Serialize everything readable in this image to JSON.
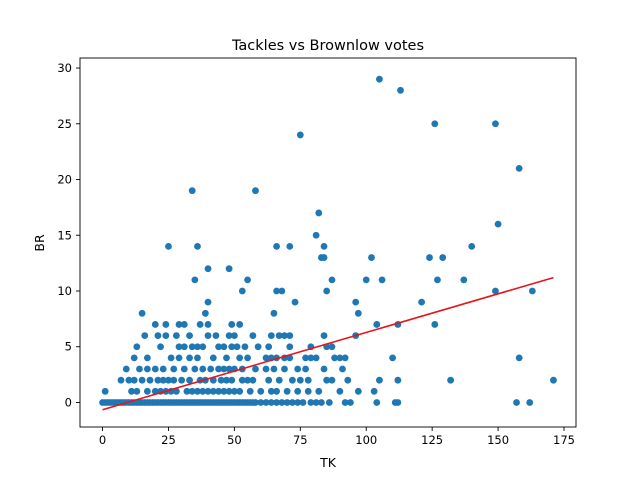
{
  "chart_data": {
    "type": "scatter",
    "title": "Tackles vs Brownlow votes",
    "xlabel": "TK",
    "ylabel": "BR",
    "xlim": [
      -8.55,
      179.55
    ],
    "ylim": [
      -2.2,
      30.9
    ],
    "xticks": [
      0,
      25,
      50,
      75,
      100,
      125,
      150,
      175
    ],
    "yticks": [
      0,
      5,
      10,
      15,
      20,
      25,
      30
    ],
    "grid": false,
    "point_color": "#1f77b4",
    "trend_color": "#e8141c",
    "trend_line": {
      "x": [
        0,
        171
      ],
      "y": [
        -0.65,
        11.2
      ]
    },
    "points": [
      [
        0,
        0
      ],
      [
        1,
        0
      ],
      [
        2,
        0
      ],
      [
        3,
        0
      ],
      [
        4,
        0
      ],
      [
        5,
        0
      ],
      [
        6,
        0
      ],
      [
        7,
        0
      ],
      [
        8,
        0
      ],
      [
        9,
        0
      ],
      [
        10,
        0
      ],
      [
        11,
        0
      ],
      [
        12,
        0
      ],
      [
        13,
        0
      ],
      [
        14,
        0
      ],
      [
        15,
        0
      ],
      [
        16,
        0
      ],
      [
        17,
        0
      ],
      [
        18,
        0
      ],
      [
        19,
        0
      ],
      [
        20,
        0
      ],
      [
        21,
        0
      ],
      [
        22,
        0
      ],
      [
        23,
        0
      ],
      [
        24,
        0
      ],
      [
        25,
        0
      ],
      [
        26,
        0
      ],
      [
        27,
        0
      ],
      [
        28,
        0
      ],
      [
        29,
        0
      ],
      [
        30,
        0
      ],
      [
        31,
        0
      ],
      [
        32,
        0
      ],
      [
        33,
        0
      ],
      [
        34,
        0
      ],
      [
        35,
        0
      ],
      [
        36,
        0
      ],
      [
        37,
        0
      ],
      [
        38,
        0
      ],
      [
        39,
        0
      ],
      [
        40,
        0
      ],
      [
        41,
        0
      ],
      [
        42,
        0
      ],
      [
        43,
        0
      ],
      [
        44,
        0
      ],
      [
        45,
        0
      ],
      [
        46,
        0
      ],
      [
        47,
        0
      ],
      [
        48,
        0
      ],
      [
        49,
        0
      ],
      [
        50,
        0
      ],
      [
        51,
        0
      ],
      [
        52,
        0
      ],
      [
        53,
        0
      ],
      [
        54,
        0
      ],
      [
        55,
        0
      ],
      [
        56,
        0
      ],
      [
        57,
        0
      ],
      [
        58,
        0
      ],
      [
        60,
        0
      ],
      [
        62,
        0
      ],
      [
        64,
        0
      ],
      [
        66,
        0
      ],
      [
        68,
        0
      ],
      [
        70,
        0
      ],
      [
        72,
        0
      ],
      [
        74,
        0
      ],
      [
        76,
        0
      ],
      [
        79,
        0
      ],
      [
        81,
        0
      ],
      [
        83,
        0
      ],
      [
        86,
        0
      ],
      [
        92,
        0
      ],
      [
        94,
        0
      ],
      [
        104,
        0
      ],
      [
        111,
        0
      ],
      [
        112,
        0
      ],
      [
        157,
        0
      ],
      [
        162,
        0
      ],
      [
        1,
        1
      ],
      [
        11,
        1
      ],
      [
        13,
        1
      ],
      [
        17,
        1
      ],
      [
        20,
        1
      ],
      [
        22,
        1
      ],
      [
        24,
        1
      ],
      [
        26,
        1
      ],
      [
        28,
        1
      ],
      [
        32,
        1
      ],
      [
        34,
        1
      ],
      [
        36,
        1
      ],
      [
        38,
        1
      ],
      [
        40,
        1
      ],
      [
        42,
        1
      ],
      [
        44,
        1
      ],
      [
        46,
        1
      ],
      [
        48,
        1
      ],
      [
        50,
        1
      ],
      [
        52,
        1
      ],
      [
        56,
        1
      ],
      [
        60,
        1
      ],
      [
        64,
        1
      ],
      [
        66,
        1
      ],
      [
        70,
        1
      ],
      [
        74,
        1
      ],
      [
        78,
        1
      ],
      [
        82,
        1
      ],
      [
        90,
        1
      ],
      [
        97,
        1
      ],
      [
        103,
        1
      ],
      [
        7,
        2
      ],
      [
        10,
        2
      ],
      [
        12,
        2
      ],
      [
        15,
        2
      ],
      [
        18,
        2
      ],
      [
        21,
        2
      ],
      [
        23,
        2
      ],
      [
        25,
        2
      ],
      [
        27,
        2
      ],
      [
        30,
        2
      ],
      [
        33,
        2
      ],
      [
        37,
        2
      ],
      [
        39,
        2
      ],
      [
        42,
        2
      ],
      [
        45,
        2
      ],
      [
        47,
        2
      ],
      [
        49,
        2
      ],
      [
        53,
        2
      ],
      [
        55,
        2
      ],
      [
        57,
        2
      ],
      [
        63,
        2
      ],
      [
        67,
        2
      ],
      [
        72,
        2
      ],
      [
        75,
        2
      ],
      [
        78,
        2
      ],
      [
        85,
        2
      ],
      [
        87,
        2
      ],
      [
        93,
        2
      ],
      [
        105,
        2
      ],
      [
        112,
        2
      ],
      [
        132,
        2
      ],
      [
        171,
        2
      ],
      [
        9,
        3
      ],
      [
        14,
        3
      ],
      [
        17,
        3
      ],
      [
        20,
        3
      ],
      [
        23,
        3
      ],
      [
        27,
        3
      ],
      [
        31,
        3
      ],
      [
        35,
        3
      ],
      [
        38,
        3
      ],
      [
        41,
        3
      ],
      [
        44,
        3
      ],
      [
        46,
        3
      ],
      [
        48,
        3
      ],
      [
        50,
        3
      ],
      [
        53,
        3
      ],
      [
        58,
        3
      ],
      [
        62,
        3
      ],
      [
        65,
        3
      ],
      [
        69,
        3
      ],
      [
        74,
        3
      ],
      [
        77,
        3
      ],
      [
        84,
        3
      ],
      [
        91,
        3
      ],
      [
        12,
        4
      ],
      [
        17,
        4
      ],
      [
        26,
        4
      ],
      [
        29,
        4
      ],
      [
        33,
        4
      ],
      [
        36,
        4
      ],
      [
        42,
        4
      ],
      [
        47,
        4
      ],
      [
        52,
        4
      ],
      [
        55,
        4
      ],
      [
        62,
        4
      ],
      [
        64,
        4
      ],
      [
        66,
        4
      ],
      [
        69,
        4
      ],
      [
        71,
        4
      ],
      [
        77,
        4
      ],
      [
        79,
        4
      ],
      [
        81,
        4
      ],
      [
        88,
        4
      ],
      [
        90,
        4
      ],
      [
        92,
        4
      ],
      [
        110,
        4
      ],
      [
        158,
        4
      ],
      [
        13,
        5
      ],
      [
        22,
        5
      ],
      [
        29,
        5
      ],
      [
        31,
        5
      ],
      [
        34,
        5
      ],
      [
        36,
        5
      ],
      [
        38,
        5
      ],
      [
        44,
        5
      ],
      [
        46,
        5
      ],
      [
        49,
        5
      ],
      [
        51,
        5
      ],
      [
        54,
        5
      ],
      [
        59,
        5
      ],
      [
        63,
        5
      ],
      [
        71,
        5
      ],
      [
        79,
        5
      ],
      [
        85,
        5
      ],
      [
        87,
        5
      ],
      [
        16,
        6
      ],
      [
        21,
        6
      ],
      [
        24,
        6
      ],
      [
        28,
        6
      ],
      [
        33,
        6
      ],
      [
        40,
        6
      ],
      [
        43,
        6
      ],
      [
        48,
        6
      ],
      [
        50,
        6
      ],
      [
        57,
        6
      ],
      [
        64,
        6
      ],
      [
        67,
        6
      ],
      [
        69,
        6
      ],
      [
        71,
        6
      ],
      [
        84,
        6
      ],
      [
        96,
        6
      ],
      [
        20,
        7
      ],
      [
        24,
        7
      ],
      [
        29,
        7
      ],
      [
        31,
        7
      ],
      [
        37,
        7
      ],
      [
        40,
        7
      ],
      [
        49,
        7
      ],
      [
        52,
        7
      ],
      [
        104,
        7
      ],
      [
        112,
        7
      ],
      [
        126,
        7
      ],
      [
        15,
        8
      ],
      [
        39,
        8
      ],
      [
        65,
        8
      ],
      [
        97,
        8
      ],
      [
        40,
        9
      ],
      [
        73,
        9
      ],
      [
        96,
        9
      ],
      [
        121,
        9
      ],
      [
        53,
        10
      ],
      [
        66,
        10
      ],
      [
        68,
        10
      ],
      [
        85,
        10
      ],
      [
        149,
        10
      ],
      [
        163,
        10
      ],
      [
        35,
        11
      ],
      [
        55,
        11
      ],
      [
        87,
        11
      ],
      [
        100,
        11
      ],
      [
        106,
        11
      ],
      [
        127,
        11
      ],
      [
        137,
        11
      ],
      [
        40,
        12
      ],
      [
        48,
        12
      ],
      [
        83,
        13
      ],
      [
        84,
        13
      ],
      [
        102,
        13
      ],
      [
        124,
        13
      ],
      [
        129,
        13
      ],
      [
        25,
        14
      ],
      [
        36,
        14
      ],
      [
        66,
        14
      ],
      [
        71,
        14
      ],
      [
        84,
        14
      ],
      [
        140,
        14
      ],
      [
        81,
        15
      ],
      [
        150,
        16
      ],
      [
        82,
        17
      ],
      [
        34,
        19
      ],
      [
        58,
        19
      ],
      [
        158,
        21
      ],
      [
        75,
        24
      ],
      [
        126,
        25
      ],
      [
        149,
        25
      ],
      [
        113,
        28
      ],
      [
        105,
        29
      ]
    ]
  }
}
